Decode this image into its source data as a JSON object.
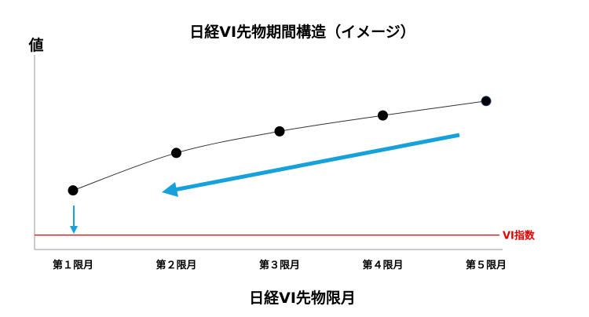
{
  "chart_data": {
    "type": "line",
    "title": "日経VI先物期間構造（イメージ）",
    "ylabel": "値",
    "xlabel": "日経VI先物限月",
    "categories": [
      "第１限月",
      "第２限月",
      "第３限月",
      "第４限月",
      "第５限月"
    ],
    "series": [
      {
        "values": [
          0.31,
          0.57,
          0.72,
          0.83,
          0.93
        ]
      }
    ],
    "reference_line": {
      "label": "VI指数",
      "value": 0.0,
      "color": "#e00000"
    },
    "ylim": [
      -0.1,
      1.25
    ],
    "grid": false,
    "colors": {
      "line": "#333333",
      "marker": "#000000",
      "arrow": "#16a0dc",
      "axis": "#999999"
    }
  }
}
